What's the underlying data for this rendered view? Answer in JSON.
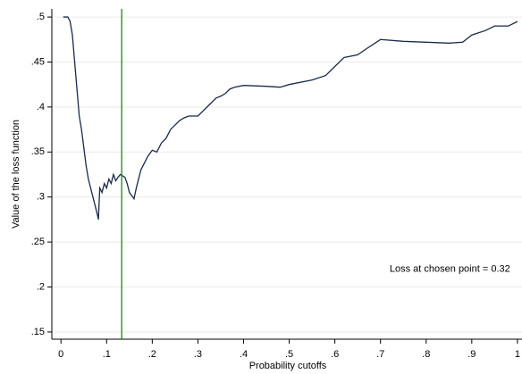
{
  "chart_data": {
    "type": "line",
    "x_label": "Probability cutoffs",
    "y_label": "Value of the loss function",
    "annotation": "Loss at chosen point = 0.32",
    "annotation_x": 0.72,
    "annotation_y": 0.22,
    "vline": 0.133,
    "vline_color": "#1a8a1a",
    "color": "#1a2a4a",
    "grid": true,
    "xlim": [
      -0.02,
      1.01
    ],
    "ylim": [
      0.142,
      0.509
    ],
    "xticks": [
      0,
      {
        "value": 0.1,
        "label": ".1"
      },
      {
        "value": 0.2,
        "label": ".2"
      },
      {
        "value": 0.3,
        "label": ".3"
      },
      {
        "value": 0.4,
        "label": ".4"
      },
      {
        "value": 0.5,
        "label": ".5"
      },
      {
        "value": 0.6,
        "label": ".6"
      },
      {
        "value": 0.7,
        "label": ".7"
      },
      {
        "value": 0.8,
        "label": ".8"
      },
      {
        "value": 0.9,
        "label": ".9"
      },
      1
    ],
    "yticks": [
      {
        "value": 0.15,
        "label": ".15"
      },
      {
        "value": 0.2,
        "label": ".2"
      },
      {
        "value": 0.25,
        "label": ".25"
      },
      {
        "value": 0.3,
        "label": ".3"
      },
      {
        "value": 0.35,
        "label": ".35"
      },
      {
        "value": 0.4,
        "label": ".4"
      },
      {
        "value": 0.45,
        "label": ".45"
      },
      {
        "value": 0.5,
        "label": ".5"
      }
    ],
    "x": [
      0.005,
      0.015,
      0.02,
      0.025,
      0.03,
      0.035,
      0.04,
      0.045,
      0.05,
      0.055,
      0.06,
      0.065,
      0.07,
      0.075,
      0.08,
      0.082,
      0.085,
      0.09,
      0.095,
      0.1,
      0.105,
      0.11,
      0.115,
      0.12,
      0.125,
      0.13,
      0.14,
      0.145,
      0.15,
      0.16,
      0.165,
      0.17,
      0.175,
      0.18,
      0.19,
      0.2,
      0.21,
      0.22,
      0.23,
      0.24,
      0.25,
      0.26,
      0.27,
      0.28,
      0.3,
      0.31,
      0.32,
      0.33,
      0.34,
      0.35,
      0.36,
      0.37,
      0.38,
      0.4,
      0.45,
      0.48,
      0.5,
      0.55,
      0.58,
      0.6,
      0.62,
      0.65,
      0.67,
      0.7,
      0.75,
      0.8,
      0.85,
      0.88,
      0.9,
      0.93,
      0.95,
      0.98,
      1.0
    ],
    "values": [
      0.5,
      0.5,
      0.495,
      0.48,
      0.45,
      0.42,
      0.39,
      0.375,
      0.355,
      0.335,
      0.32,
      0.31,
      0.3,
      0.29,
      0.28,
      0.275,
      0.31,
      0.305,
      0.315,
      0.31,
      0.32,
      0.315,
      0.325,
      0.318,
      0.322,
      0.325,
      0.322,
      0.315,
      0.305,
      0.298,
      0.31,
      0.32,
      0.33,
      0.335,
      0.345,
      0.352,
      0.35,
      0.36,
      0.365,
      0.375,
      0.38,
      0.385,
      0.388,
      0.39,
      0.39,
      0.395,
      0.4,
      0.405,
      0.41,
      0.412,
      0.415,
      0.42,
      0.422,
      0.424,
      0.423,
      0.422,
      0.425,
      0.43,
      0.435,
      0.445,
      0.455,
      0.458,
      0.465,
      0.475,
      0.473,
      0.472,
      0.471,
      0.472,
      0.48,
      0.485,
      0.49,
      0.49,
      0.495
    ]
  }
}
